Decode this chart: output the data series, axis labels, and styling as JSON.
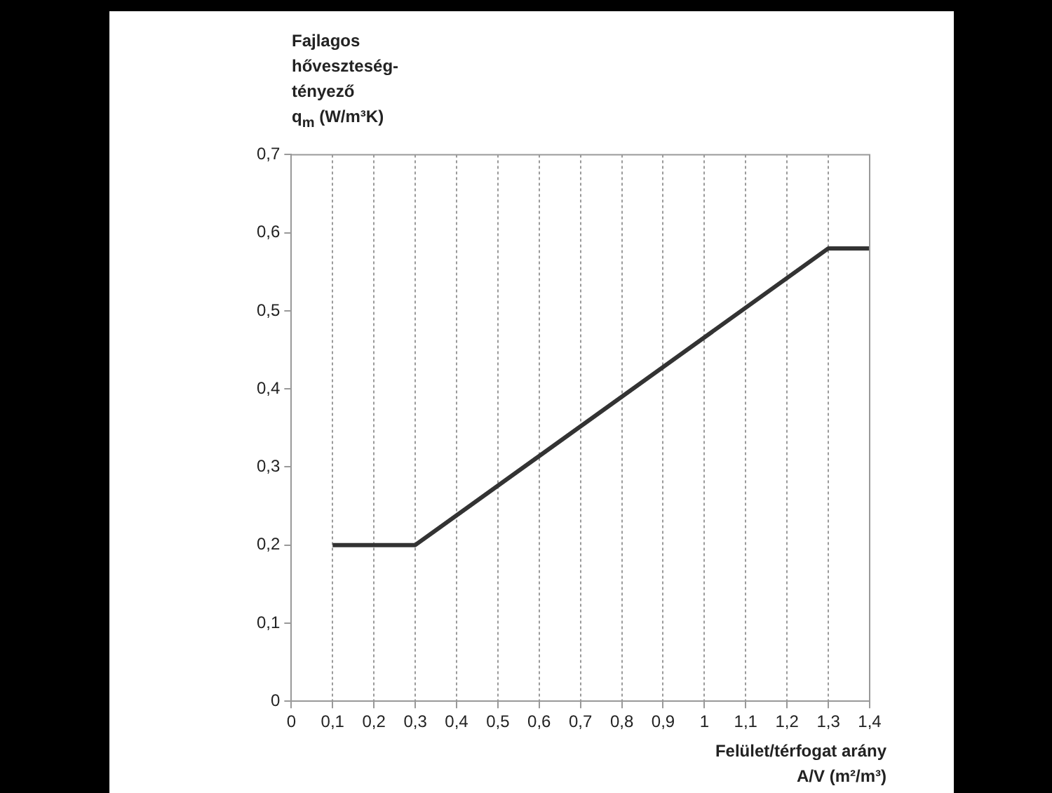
{
  "chart_data": {
    "type": "line",
    "ylabel": "Fajlagos\nhőveszteség-\ntényező\nq$_{m}$ (W/m³K)",
    "xlabel": "Felület/térfogat arány\nA/V (m²/m³)",
    "series": [
      {
        "color": "#333333",
        "x": [
          0.1,
          0.3,
          1.3,
          1.4
        ],
        "values": [
          0.2,
          0.2,
          0.58,
          0.58
        ]
      }
    ],
    "xlim": [
      0,
      1.4
    ],
    "xticks": [
      {
        "value": 0,
        "label": "0"
      },
      {
        "value": 0.1,
        "label": "0,1"
      },
      {
        "value": 0.2,
        "label": "0,2"
      },
      {
        "value": 0.3,
        "label": "0,3"
      },
      {
        "value": 0.4,
        "label": "0,4"
      },
      {
        "value": 0.5,
        "label": "0,5"
      },
      {
        "value": 0.6,
        "label": "0,6"
      },
      {
        "value": 0.7,
        "label": "0,7"
      },
      {
        "value": 0.8,
        "label": "0,8"
      },
      {
        "value": 0.9,
        "label": "0,9"
      },
      {
        "value": 1,
        "label": "1"
      },
      {
        "value": 1.1,
        "label": "1,1"
      },
      {
        "value": 1.2,
        "label": "1,2"
      },
      {
        "value": 1.3,
        "label": "1,3"
      },
      {
        "value": 1.4,
        "label": "1,4"
      }
    ],
    "ylim": [
      0,
      0.7
    ],
    "yticks": [
      {
        "value": 0,
        "label": "0"
      },
      {
        "value": 0.1,
        "label": "0,1"
      },
      {
        "value": 0.2,
        "label": "0,2"
      },
      {
        "value": 0.3,
        "label": "0,3"
      },
      {
        "value": 0.4,
        "label": "0,4"
      },
      {
        "value": 0.5,
        "label": "0,5"
      },
      {
        "value": 0.6,
        "label": "0,6"
      },
      {
        "value": 0.7,
        "label": "0,7"
      }
    ],
    "grid": "x",
    "legend": false,
    "marker": "none",
    "line_style": "solid"
  }
}
